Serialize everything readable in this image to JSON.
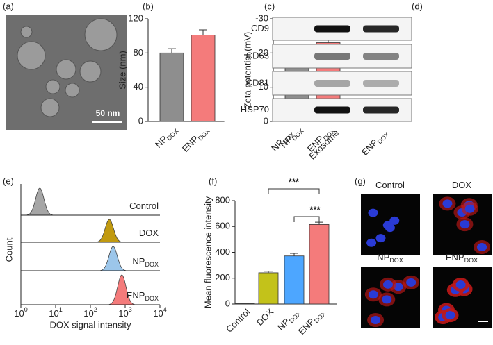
{
  "chart_data": [
    {
      "type": "image",
      "panel_label": "(a)",
      "scale_bar": "50 nm"
    },
    {
      "type": "bar",
      "panel_label": "(b)",
      "ylabel": "Size (nm)",
      "categories": [
        "NP",
        "ENP"
      ],
      "category_subscripts": [
        "DOX",
        "DOX"
      ],
      "values": [
        80,
        101
      ],
      "errors": [
        5,
        6
      ],
      "colors": [
        "#8e8e8e",
        "#f47b7b"
      ],
      "ylim": [
        0,
        120
      ],
      "yticks": [
        0,
        40,
        80,
        120
      ]
    },
    {
      "type": "bar",
      "panel_label": "(c)",
      "ylabel": "Zeta potential (mV)",
      "categories": [
        "NP",
        "ENP"
      ],
      "category_subscripts": [
        "DOX",
        "DOX"
      ],
      "values": [
        -18.6,
        -23
      ],
      "errors": [
        1.6,
        3
      ],
      "colors": [
        "#8e8e8e",
        "#f47b7b"
      ],
      "ylim": [
        0,
        -30
      ],
      "yticks": [
        0,
        -10,
        -20,
        -30
      ]
    },
    {
      "type": "blot",
      "panel_label": "(d)",
      "rows": [
        "CD9",
        "CD63",
        "CD81",
        "HSP70"
      ],
      "columns": [
        "NP",
        "Exosome",
        "ENP"
      ],
      "column_subscripts": [
        "DOX",
        null,
        "DOX"
      ]
    },
    {
      "type": "density",
      "panel_label": "(e)",
      "xlabel": "DOX signal intensity",
      "ylabel": "Count",
      "xlog": true,
      "xlim": [
        1,
        10000
      ],
      "xticks": [
        {
          "value": 1,
          "label": "10",
          "sup": "0"
        },
        {
          "value": 10,
          "label": "10",
          "sup": "1"
        },
        {
          "value": 100,
          "label": "10",
          "sup": "2"
        },
        {
          "value": 1000,
          "label": "10",
          "sup": "3"
        },
        {
          "value": 10000,
          "label": "10",
          "sup": "4"
        }
      ],
      "series": [
        {
          "name": "Control",
          "color": "#a6a6a6",
          "peak": 3.5
        },
        {
          "name": "DOX",
          "color": "#c19a10",
          "peak": 350
        },
        {
          "name": "NP",
          "subscript": "DOX",
          "color": "#9cc6ea",
          "peak": 450
        },
        {
          "name": "ENP",
          "subscript": "DOX",
          "color": "#f47b7b",
          "peak": 800
        }
      ]
    },
    {
      "type": "bar",
      "panel_label": "(f)",
      "ylabel": "Mean fluorescence intensity",
      "categories": [
        "Control",
        "DOX",
        "NP",
        "ENP"
      ],
      "category_subscripts": [
        null,
        null,
        "DOX",
        "DOX"
      ],
      "values": [
        5,
        242,
        372,
        615
      ],
      "errors": [
        2,
        12,
        20,
        18
      ],
      "colors": [
        "#8e8e8e",
        "#c3c21a",
        "#4da6ff",
        "#f47b7b"
      ],
      "ylim": [
        0,
        800
      ],
      "yticks": [
        0,
        200,
        400,
        600,
        800
      ],
      "annotations": [
        "***",
        "***"
      ]
    },
    {
      "type": "micrograph",
      "panel_label": "(g)",
      "labels": [
        "Control",
        "DOX",
        "NP",
        "ENP"
      ],
      "label_subscripts": [
        null,
        null,
        "DOX",
        "DOX"
      ]
    }
  ]
}
